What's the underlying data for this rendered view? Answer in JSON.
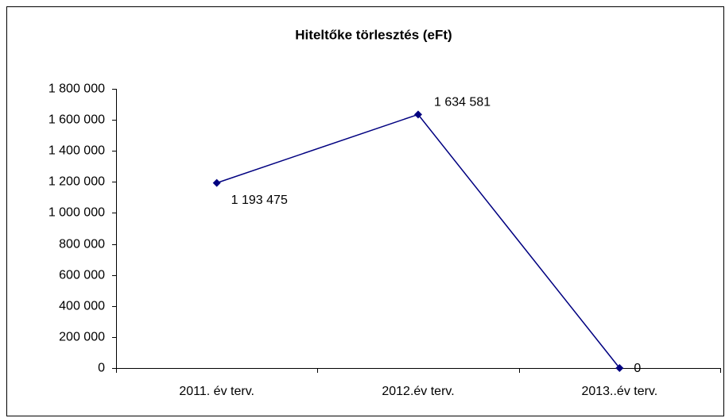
{
  "chart_data": {
    "type": "line",
    "title": "Hiteltőke törlesztés (eFt)",
    "categories": [
      "2011. év terv.",
      "2012.év terv.",
      "2013..év terv."
    ],
    "series": [
      {
        "name": "Hiteltőke törlesztés",
        "color": "#000080",
        "values": [
          1193475,
          1634581,
          0
        ],
        "value_labels": [
          "1 193 475",
          "1 634 581",
          "0"
        ]
      }
    ],
    "ylim": [
      0,
      1800000
    ],
    "yticks": [
      0,
      {
        "value": 200000,
        "label": "200 000"
      },
      {
        "value": 400000,
        "label": "400 000"
      },
      {
        "value": 600000,
        "label": "600 000"
      },
      {
        "value": 800000,
        "label": "800 000"
      },
      {
        "value": 1000000,
        "label": "1 000 000"
      },
      {
        "value": 1200000,
        "label": "1 200 000"
      },
      {
        "value": 1400000,
        "label": "1 400 000"
      },
      {
        "value": 1600000,
        "label": "1 600 000"
      },
      {
        "value": 1800000,
        "label": "1 800 000"
      }
    ],
    "grid": false,
    "legend": false
  }
}
